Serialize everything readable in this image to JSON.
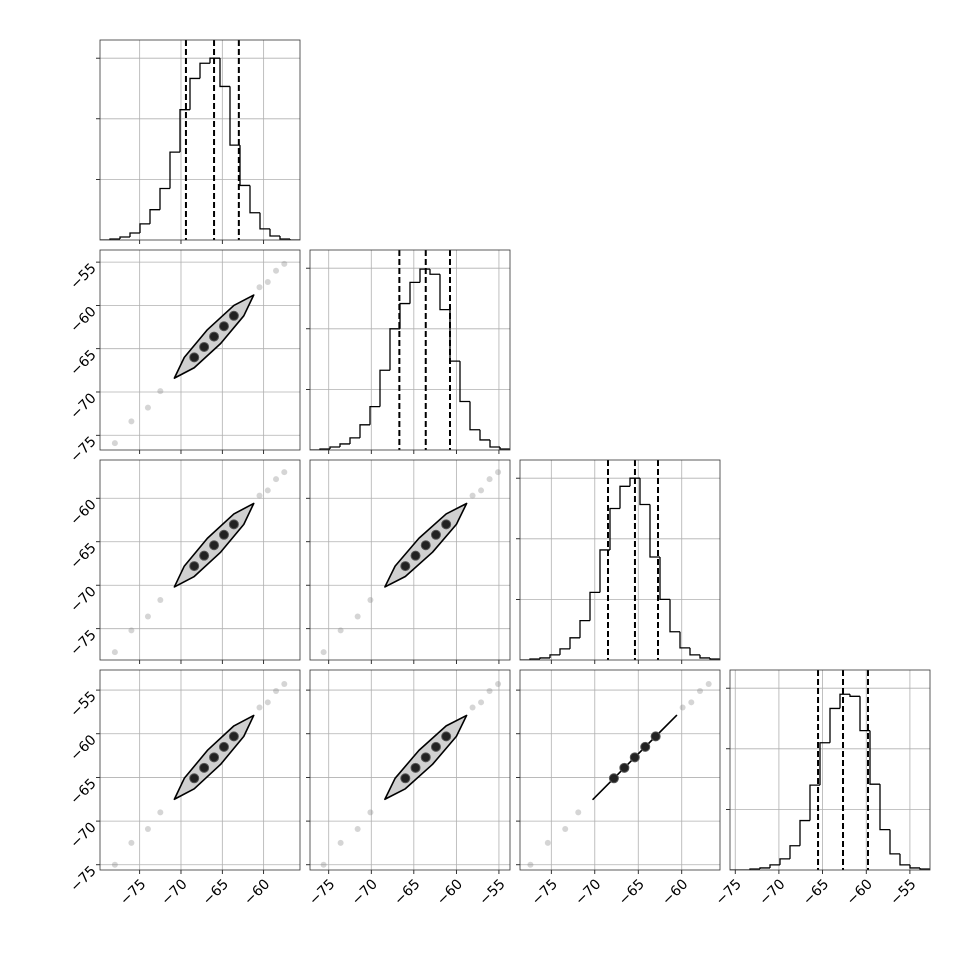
{
  "chart_data": [
    {
      "type": "histogram",
      "color": "#000000",
      "grid": true,
      "bins": [
        -79.8,
        -78.59,
        -77.38,
        -76.17,
        -74.96,
        -73.75,
        -72.54,
        -71.33,
        -70.12,
        -68.91,
        -67.7,
        -66.49,
        -65.28,
        -64.07,
        -62.86,
        -61.65,
        -60.44,
        -59.23,
        -58.02,
        -56.81,
        -55.6
      ],
      "counts": [
        0,
        8,
        25,
        58,
        133,
        250,
        425,
        725,
        1075,
        1333,
        1458,
        1500,
        1267,
        783,
        450,
        225,
        92,
        33,
        8,
        0
      ],
      "quantiles": [
        -69.4,
        -66.0,
        -63.0
      ],
      "xlim": [
        -79.8,
        -55.6
      ],
      "xticks": [
        -75,
        -70,
        -65,
        -60
      ],
      "ylim": [
        0,
        1650
      ],
      "yticks": [
        500,
        1000,
        1500
      ]
    },
    {
      "type": "scatter",
      "color": "#000000",
      "grid": true,
      "x": [
        -78,
        -76,
        -74,
        -72.5,
        -60.5,
        -59.5,
        -58.5,
        -57.5
      ],
      "y": [
        -75.9,
        -73.4,
        -71.8,
        -69.9,
        -57.9,
        -57.3,
        -56,
        -55.2
      ],
      "contour": {
        "x": [
          -70.8,
          -68.4,
          -65.2,
          -62.4,
          -61.2,
          -63.6,
          -66.8,
          -69.6
        ],
        "y": [
          -68.4,
          -67.2,
          -64.4,
          -61.2,
          -58.8,
          -60.0,
          -62.8,
          -66.0
        ]
      },
      "density_points": {
        "x": [
          -68.4,
          -67.2,
          -66,
          -64.8,
          -63.6
        ],
        "y": [
          -66,
          -64.8,
          -63.6,
          -62.4,
          -61.2
        ]
      },
      "xlim": [
        -79.8,
        -55.6
      ],
      "xticks": [
        -75,
        -70,
        -65,
        -60
      ],
      "ylim": [
        -76.7,
        -53.6
      ],
      "yticks": [
        {
          "value": -75,
          "label": "−75"
        },
        {
          "value": -70,
          "label": "−70"
        },
        {
          "value": -65,
          "label": "−65"
        },
        {
          "value": -60,
          "label": "−60"
        },
        {
          "value": -55,
          "label": "−55"
        }
      ]
    },
    {
      "type": "histogram",
      "color": "#000000",
      "grid": true,
      "bins": [
        -77.2,
        -76.025,
        -74.85,
        -73.675,
        -72.5,
        -71.325,
        -70.15,
        -68.975,
        -67.8,
        -66.625,
        -65.45,
        -64.275,
        -63.1,
        -61.925,
        -60.75,
        -59.575,
        -58.4,
        -57.225,
        -56.05,
        -54.875,
        -53.7
      ],
      "counts": [
        0,
        8,
        25,
        50,
        100,
        208,
        358,
        658,
        1000,
        1208,
        1383,
        1492,
        1450,
        1158,
        733,
        400,
        167,
        83,
        25,
        8
      ],
      "quantiles": [
        -66.7,
        -63.6,
        -60.75
      ],
      "xlim": [
        -77.2,
        -53.7
      ],
      "xticks": [
        -75,
        -70,
        -65,
        -60,
        -55
      ],
      "ylim": [
        0,
        1650
      ],
      "yticks": [
        500,
        1000,
        1500
      ]
    },
    {
      "type": "scatter",
      "color": "#000000",
      "grid": true,
      "x": [
        -78,
        -76,
        -74,
        -72.5,
        -60.5,
        -59.5,
        -58.5,
        -57.5
      ],
      "y": [
        -77.7,
        -75.2,
        -73.6,
        -71.7,
        -59.7,
        -59.1,
        -57.8,
        -57
      ],
      "contour": {
        "x": [
          -70.8,
          -68.4,
          -65.2,
          -62.4,
          -61.2,
          -63.6,
          -66.8,
          -69.6
        ],
        "y": [
          -70.2,
          -69.0,
          -66.2,
          -63.0,
          -60.6,
          -61.8,
          -64.6,
          -67.8
        ]
      },
      "density_points": {
        "x": [
          -68.4,
          -67.2,
          -66,
          -64.8,
          -63.6
        ],
        "y": [
          -67.8,
          -66.6,
          -65.4,
          -64.2,
          -63
        ]
      },
      "xlim": [
        -79.8,
        -55.6
      ],
      "xticks": [
        -75,
        -70,
        -65,
        -60
      ],
      "ylim": [
        -78.6,
        -55.6
      ],
      "yticks": [
        {
          "value": -75,
          "label": "−75"
        },
        {
          "value": -70,
          "label": "−70"
        },
        {
          "value": -65,
          "label": "−65"
        },
        {
          "value": -60,
          "label": "−60"
        }
      ]
    },
    {
      "type": "scatter",
      "color": "#000000",
      "grid": true,
      "x": [
        -75.6,
        -73.6,
        -71.6,
        -70.1,
        -58.1,
        -57.1,
        -56.1,
        -55.1
      ],
      "y": [
        -77.7,
        -75.2,
        -73.6,
        -71.7,
        -59.7,
        -59.1,
        -57.8,
        -57
      ],
      "contour": {
        "x": [
          -68.4,
          -66.0,
          -62.8,
          -60.0,
          -58.8,
          -61.2,
          -64.4,
          -67.2
        ],
        "y": [
          -70.2,
          -69.0,
          -66.2,
          -63.0,
          -60.6,
          -61.8,
          -64.6,
          -67.8
        ]
      },
      "density_points": {
        "x": [
          -66,
          -64.8,
          -63.6,
          -62.4,
          -61.2
        ],
        "y": [
          -67.8,
          -66.6,
          -65.4,
          -64.2,
          -63
        ]
      },
      "xlim": [
        -77.2,
        -53.7
      ],
      "xticks": [
        -75,
        -70,
        -65,
        -60,
        -55
      ],
      "ylim": [
        -78.6,
        -55.6
      ],
      "yticks": [
        -75,
        -70,
        -65,
        -60
      ]
    },
    {
      "type": "histogram",
      "color": "#000000",
      "grid": true,
      "bins": [
        -78.6,
        -77.45,
        -76.3,
        -75.15,
        -74,
        -72.85,
        -71.7,
        -70.55,
        -69.4,
        -68.25,
        -67.1,
        -65.95,
        -64.8,
        -63.65,
        -62.5,
        -61.35,
        -60.2,
        -59.05,
        -57.9,
        -56.75,
        -55.6
      ],
      "counts": [
        0,
        8,
        17,
        42,
        92,
        183,
        325,
        558,
        908,
        1250,
        1433,
        1500,
        1283,
        850,
        500,
        233,
        100,
        42,
        17,
        8
      ],
      "quantiles": [
        -68.48,
        -65.38,
        -62.73
      ],
      "xlim": [
        -78.6,
        -55.6
      ],
      "xticks": [
        -75,
        -70,
        -65,
        -60
      ],
      "ylim": [
        0,
        1650
      ],
      "yticks": [
        500,
        1000,
        1500
      ]
    },
    {
      "type": "scatter",
      "color": "#000000",
      "grid": true,
      "x": [
        -78,
        -76,
        -74,
        -72.5,
        -60.5,
        -59.5,
        -58.5,
        -57.5
      ],
      "y": [
        -75,
        -72.5,
        -70.9,
        -69,
        -57,
        -56.4,
        -55.1,
        -54.3
      ],
      "contour": {
        "x": [
          -70.8,
          -68.4,
          -65.2,
          -62.4,
          -61.2,
          -63.6,
          -66.8,
          -69.6
        ],
        "y": [
          -67.5,
          -66.3,
          -63.5,
          -60.3,
          -57.9,
          -59.1,
          -61.9,
          -65.1
        ]
      },
      "density_points": {
        "x": [
          -68.4,
          -67.2,
          -66,
          -64.8,
          -63.6
        ],
        "y": [
          -65.1,
          -63.9,
          -62.7,
          -61.5,
          -60.3
        ]
      },
      "xlim": [
        -79.8,
        -55.6
      ],
      "xticks": [
        {
          "value": -75,
          "label": "−75"
        },
        {
          "value": -70,
          "label": "−70"
        },
        {
          "value": -65,
          "label": "−65"
        },
        {
          "value": -60,
          "label": "−60"
        }
      ],
      "ylim": [
        -75.6,
        -52.7
      ],
      "yticks": [
        {
          "value": -75,
          "label": "−75"
        },
        {
          "value": -70,
          "label": "−70"
        },
        {
          "value": -65,
          "label": "−65"
        },
        {
          "value": -60,
          "label": "−60"
        },
        {
          "value": -55,
          "label": "−55"
        }
      ]
    },
    {
      "type": "scatter",
      "color": "#000000",
      "grid": true,
      "x": [
        -75.6,
        -73.6,
        -71.6,
        -70.1,
        -58.1,
        -57.1,
        -56.1,
        -55.1
      ],
      "y": [
        -75,
        -72.5,
        -70.9,
        -69,
        -57,
        -56.4,
        -55.1,
        -54.3
      ],
      "contour": {
        "x": [
          -68.4,
          -66.0,
          -62.8,
          -60.0,
          -58.8,
          -61.2,
          -64.4,
          -67.2
        ],
        "y": [
          -67.5,
          -66.3,
          -63.5,
          -60.3,
          -57.9,
          -59.1,
          -61.9,
          -65.1
        ]
      },
      "density_points": {
        "x": [
          -66,
          -64.8,
          -63.6,
          -62.4,
          -61.2
        ],
        "y": [
          -65.1,
          -63.9,
          -62.7,
          -61.5,
          -60.3
        ]
      },
      "xlim": [
        -77.2,
        -53.7
      ],
      "xticks": [
        {
          "value": -75,
          "label": "−75"
        },
        {
          "value": -70,
          "label": "−70"
        },
        {
          "value": -65,
          "label": "−65"
        },
        {
          "value": -60,
          "label": "−60"
        },
        {
          "value": -55,
          "label": "−55"
        }
      ],
      "ylim": [
        -75.6,
        -52.7
      ],
      "yticks": [
        -75,
        -70,
        -65,
        -60,
        -55
      ]
    },
    {
      "type": "scatter",
      "color": "#000000",
      "grid": true,
      "x": [
        -77.4,
        -75.4,
        -73.4,
        -71.9,
        -59.9,
        -58.9,
        -57.9,
        -56.9
      ],
      "y": [
        -75,
        -72.5,
        -70.9,
        -69,
        -57,
        -56.4,
        -55.1,
        -54.3
      ],
      "contour": {
        "x": [
          -70.2,
          -69.0,
          -66.2,
          -63.0,
          -60.6,
          -61.8,
          -64.6,
          -67.8
        ],
        "y": [
          -67.5,
          -66.3,
          -63.5,
          -60.3,
          -57.9,
          -59.1,
          -61.9,
          -65.1
        ]
      },
      "density_points": {
        "x": [
          -67.8,
          -66.6,
          -65.4,
          -64.2,
          -63
        ],
        "y": [
          -65.1,
          -63.9,
          -62.7,
          -61.5,
          -60.3
        ]
      },
      "xlim": [
        -78.6,
        -55.6
      ],
      "xticks": [
        {
          "value": -75,
          "label": "−75"
        },
        {
          "value": -70,
          "label": "−70"
        },
        {
          "value": -65,
          "label": "−65"
        },
        {
          "value": -60,
          "label": "−60"
        }
      ],
      "ylim": [
        -75.6,
        -52.7
      ],
      "yticks": [
        -75,
        -70,
        -65,
        -60,
        -55
      ]
    },
    {
      "type": "histogram",
      "color": "#000000",
      "grid": true,
      "bins": [
        -75.6,
        -74.455,
        -73.31,
        -72.165,
        -71.02,
        -69.875,
        -68.73,
        -67.585,
        -66.44,
        -65.295,
        -64.15,
        -63.005,
        -61.86,
        -60.715,
        -59.57,
        -58.425,
        -57.28,
        -56.135,
        -54.99,
        -53.845,
        -52.7
      ],
      "counts": [
        0,
        0,
        8,
        17,
        42,
        92,
        200,
        408,
        700,
        1050,
        1333,
        1450,
        1433,
        1150,
        708,
        333,
        133,
        42,
        17,
        8
      ],
      "quantiles": [
        -65.52,
        -62.66,
        -59.8
      ],
      "xlim": [
        -75.6,
        -52.7
      ],
      "xticks": [
        {
          "value": -75,
          "label": "−75"
        },
        {
          "value": -70,
          "label": "−70"
        },
        {
          "value": -65,
          "label": "−65"
        },
        {
          "value": -60,
          "label": "−60"
        },
        {
          "value": -55,
          "label": "−55"
        }
      ],
      "ylim": [
        0,
        1650
      ],
      "yticks": [
        500,
        1000,
        1500
      ]
    }
  ]
}
